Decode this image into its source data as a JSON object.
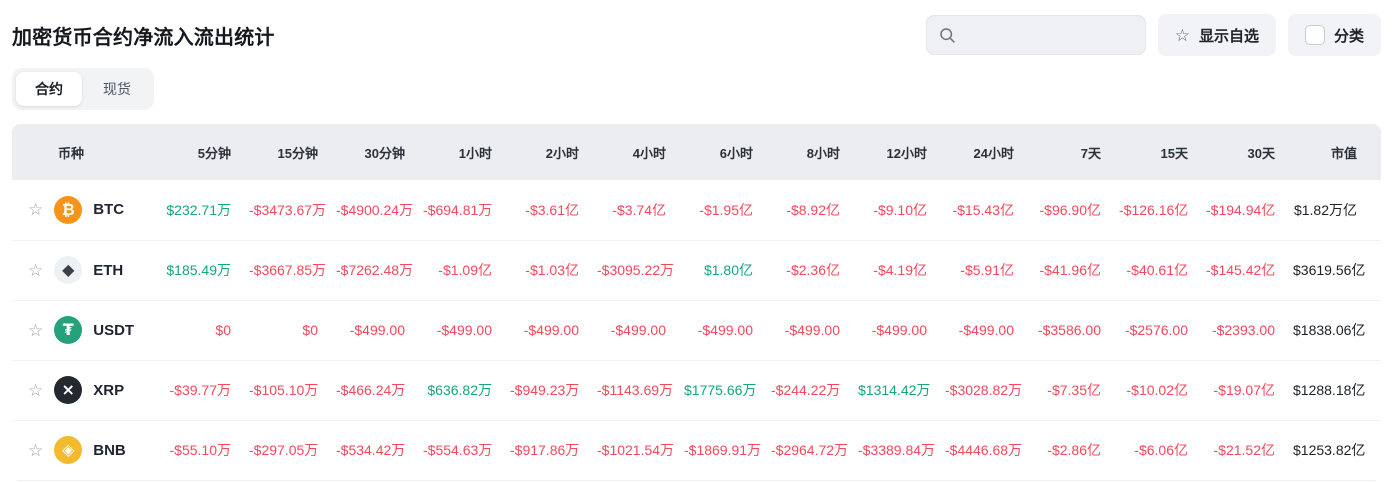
{
  "page": {
    "title": "加密货币合约净流入流出统计"
  },
  "toolbar": {
    "search": {
      "value": "",
      "placeholder": ""
    },
    "favorites_button_label": "显示自选",
    "category_button_label": "分类",
    "category_checkbox_checked": false
  },
  "tabs": [
    {
      "label": "合约",
      "active": true
    },
    {
      "label": "现货",
      "active": false
    }
  ],
  "colors": {
    "up": "#13a67f",
    "down": "#f5485c",
    "neutral": "#1c2127"
  },
  "table": {
    "columns": [
      "币种",
      "5分钟",
      "15分钟",
      "30分钟",
      "1小时",
      "2小时",
      "4小时",
      "6小时",
      "8小时",
      "12小时",
      "24小时",
      "7天",
      "15天",
      "30天",
      "市值"
    ],
    "rows": [
      {
        "symbol": "BTC",
        "icon": {
          "name": "btc-coin-icon",
          "bg": "#F7931A",
          "fg": "#ffffff",
          "glyph": "₿"
        },
        "cells": [
          {
            "text": "$232.71万",
            "tone": "up"
          },
          {
            "text": "-$3473.67万",
            "tone": "down"
          },
          {
            "text": "-$4900.24万",
            "tone": "down"
          },
          {
            "text": "-$694.81万",
            "tone": "down"
          },
          {
            "text": "-$3.61亿",
            "tone": "down"
          },
          {
            "text": "-$3.74亿",
            "tone": "down"
          },
          {
            "text": "-$1.95亿",
            "tone": "down"
          },
          {
            "text": "-$8.92亿",
            "tone": "down"
          },
          {
            "text": "-$9.10亿",
            "tone": "down"
          },
          {
            "text": "-$15.43亿",
            "tone": "down"
          },
          {
            "text": "-$96.90亿",
            "tone": "down"
          },
          {
            "text": "-$126.16亿",
            "tone": "down"
          },
          {
            "text": "-$194.94亿",
            "tone": "down"
          },
          {
            "text": "$1.82万亿",
            "tone": "neutral"
          }
        ]
      },
      {
        "symbol": "ETH",
        "icon": {
          "name": "eth-coin-icon",
          "bg": "#eef1f4",
          "fg": "#3c4049",
          "glyph": "◆"
        },
        "cells": [
          {
            "text": "$185.49万",
            "tone": "up"
          },
          {
            "text": "-$3667.85万",
            "tone": "down"
          },
          {
            "text": "-$7262.48万",
            "tone": "down"
          },
          {
            "text": "-$1.09亿",
            "tone": "down"
          },
          {
            "text": "-$1.03亿",
            "tone": "down"
          },
          {
            "text": "-$3095.22万",
            "tone": "down"
          },
          {
            "text": "$1.80亿",
            "tone": "up"
          },
          {
            "text": "-$2.36亿",
            "tone": "down"
          },
          {
            "text": "-$4.19亿",
            "tone": "down"
          },
          {
            "text": "-$5.91亿",
            "tone": "down"
          },
          {
            "text": "-$41.96亿",
            "tone": "down"
          },
          {
            "text": "-$40.61亿",
            "tone": "down"
          },
          {
            "text": "-$145.42亿",
            "tone": "down"
          },
          {
            "text": "$3619.56亿",
            "tone": "neutral"
          }
        ]
      },
      {
        "symbol": "USDT",
        "icon": {
          "name": "usdt-coin-icon",
          "bg": "#26a17b",
          "fg": "#ffffff",
          "glyph": "₮"
        },
        "cells": [
          {
            "text": "$0",
            "tone": "down"
          },
          {
            "text": "$0",
            "tone": "down"
          },
          {
            "text": "-$499.00",
            "tone": "down"
          },
          {
            "text": "-$499.00",
            "tone": "down"
          },
          {
            "text": "-$499.00",
            "tone": "down"
          },
          {
            "text": "-$499.00",
            "tone": "down"
          },
          {
            "text": "-$499.00",
            "tone": "down"
          },
          {
            "text": "-$499.00",
            "tone": "down"
          },
          {
            "text": "-$499.00",
            "tone": "down"
          },
          {
            "text": "-$499.00",
            "tone": "down"
          },
          {
            "text": "-$3586.00",
            "tone": "down"
          },
          {
            "text": "-$2576.00",
            "tone": "down"
          },
          {
            "text": "-$2393.00",
            "tone": "down"
          },
          {
            "text": "$1838.06亿",
            "tone": "neutral"
          }
        ]
      },
      {
        "symbol": "XRP",
        "icon": {
          "name": "xrp-coin-icon",
          "bg": "#23292f",
          "fg": "#ffffff",
          "glyph": "×"
        },
        "cells": [
          {
            "text": "-$39.77万",
            "tone": "down"
          },
          {
            "text": "-$105.10万",
            "tone": "down"
          },
          {
            "text": "-$466.24万",
            "tone": "down"
          },
          {
            "text": "$636.82万",
            "tone": "up"
          },
          {
            "text": "-$949.23万",
            "tone": "down"
          },
          {
            "text": "-$1143.69万",
            "tone": "down"
          },
          {
            "text": "$1775.66万",
            "tone": "up"
          },
          {
            "text": "-$244.22万",
            "tone": "down"
          },
          {
            "text": "$1314.42万",
            "tone": "up"
          },
          {
            "text": "-$3028.82万",
            "tone": "down"
          },
          {
            "text": "-$7.35亿",
            "tone": "down"
          },
          {
            "text": "-$10.02亿",
            "tone": "down"
          },
          {
            "text": "-$19.07亿",
            "tone": "down"
          },
          {
            "text": "$1288.18亿",
            "tone": "neutral"
          }
        ]
      },
      {
        "symbol": "BNB",
        "icon": {
          "name": "bnb-coin-icon",
          "bg": "#f3ba2f",
          "fg": "#ffffff",
          "glyph": "◈"
        },
        "cells": [
          {
            "text": "-$55.10万",
            "tone": "down"
          },
          {
            "text": "-$297.05万",
            "tone": "down"
          },
          {
            "text": "-$534.42万",
            "tone": "down"
          },
          {
            "text": "-$554.63万",
            "tone": "down"
          },
          {
            "text": "-$917.86万",
            "tone": "down"
          },
          {
            "text": "-$1021.54万",
            "tone": "down"
          },
          {
            "text": "-$1869.91万",
            "tone": "down"
          },
          {
            "text": "-$2964.72万",
            "tone": "down"
          },
          {
            "text": "-$3389.84万",
            "tone": "down"
          },
          {
            "text": "-$4446.68万",
            "tone": "down"
          },
          {
            "text": "-$2.86亿",
            "tone": "down"
          },
          {
            "text": "-$6.06亿",
            "tone": "down"
          },
          {
            "text": "-$21.52亿",
            "tone": "down"
          },
          {
            "text": "$1253.82亿",
            "tone": "neutral"
          }
        ]
      }
    ]
  }
}
